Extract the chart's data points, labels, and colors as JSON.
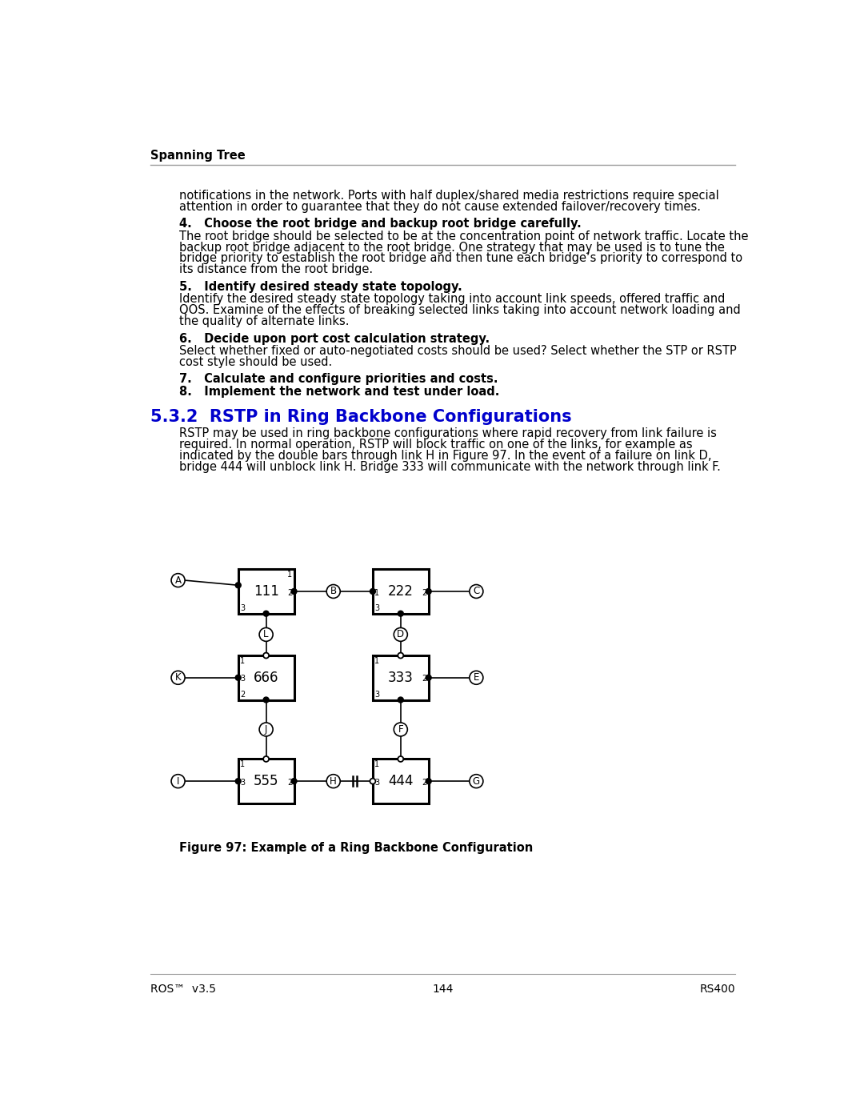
{
  "page_bg": "#ffffff",
  "header_text": "Spanning Tree",
  "footer_left": "ROS™  v3.5",
  "footer_center": "144",
  "footer_right": "RS400",
  "section_title": "5.3.2  RSTP in Ring Backbone Configurations",
  "section_title_color": "#0000cc",
  "para1_line1": "notifications in the network. Ports with half duplex/shared media restrictions require special",
  "para1_line2": "attention in order to guarantee that they do not cause extended failover/recovery times.",
  "item4_bold": "4.   Choose the root bridge and backup root bridge carefully.",
  "item4_body_l1": "The root bridge should be selected to be at the concentration point of network traffic. Locate the",
  "item4_body_l2": "backup root bridge adjacent to the root bridge. One strategy that may be used is to tune the",
  "item4_body_l3": "bridge priority to establish the root bridge and then tune each bridge’s priority to correspond to",
  "item4_body_l4": "its distance from the root bridge.",
  "item5_bold": "5.   Identify desired steady state topology.",
  "item5_body_l1": "Identify the desired steady state topology taking into account link speeds, offered traffic and",
  "item5_body_l2": "QOS. Examine of the effects of breaking selected links taking into account network loading and",
  "item5_body_l3": "the quality of alternate links.",
  "item6_bold": "6.   Decide upon port cost calculation strategy.",
  "item6_body_l1": "Select whether fixed or auto-negotiated costs should be used? Select whether the STP or RSTP",
  "item6_body_l2": "cost style should be used.",
  "item7_bold": "7.   Calculate and configure priorities and costs.",
  "item8_bold": "8.   Implement the network and test under load.",
  "section_body_l1": "RSTP may be used in ring backbone configurations where rapid recovery from link failure is",
  "section_body_l2": "required. In normal operation, RSTP will block traffic on one of the links, for example as",
  "section_body_l3": "indicated by the double bars through link H in Figure 97. In the event of a failure on link D,",
  "section_body_l4": "bridge 444 will unblock link H. Bridge 333 will communicate with the network through link F.",
  "figure_caption": "Figure 97: Example of a Ring Backbone Configuration",
  "body_fontsize": 10.5,
  "bold_fontsize": 10.5,
  "section_title_fontsize": 15.0,
  "header_fontsize": 10.5,
  "footer_fontsize": 10.0
}
